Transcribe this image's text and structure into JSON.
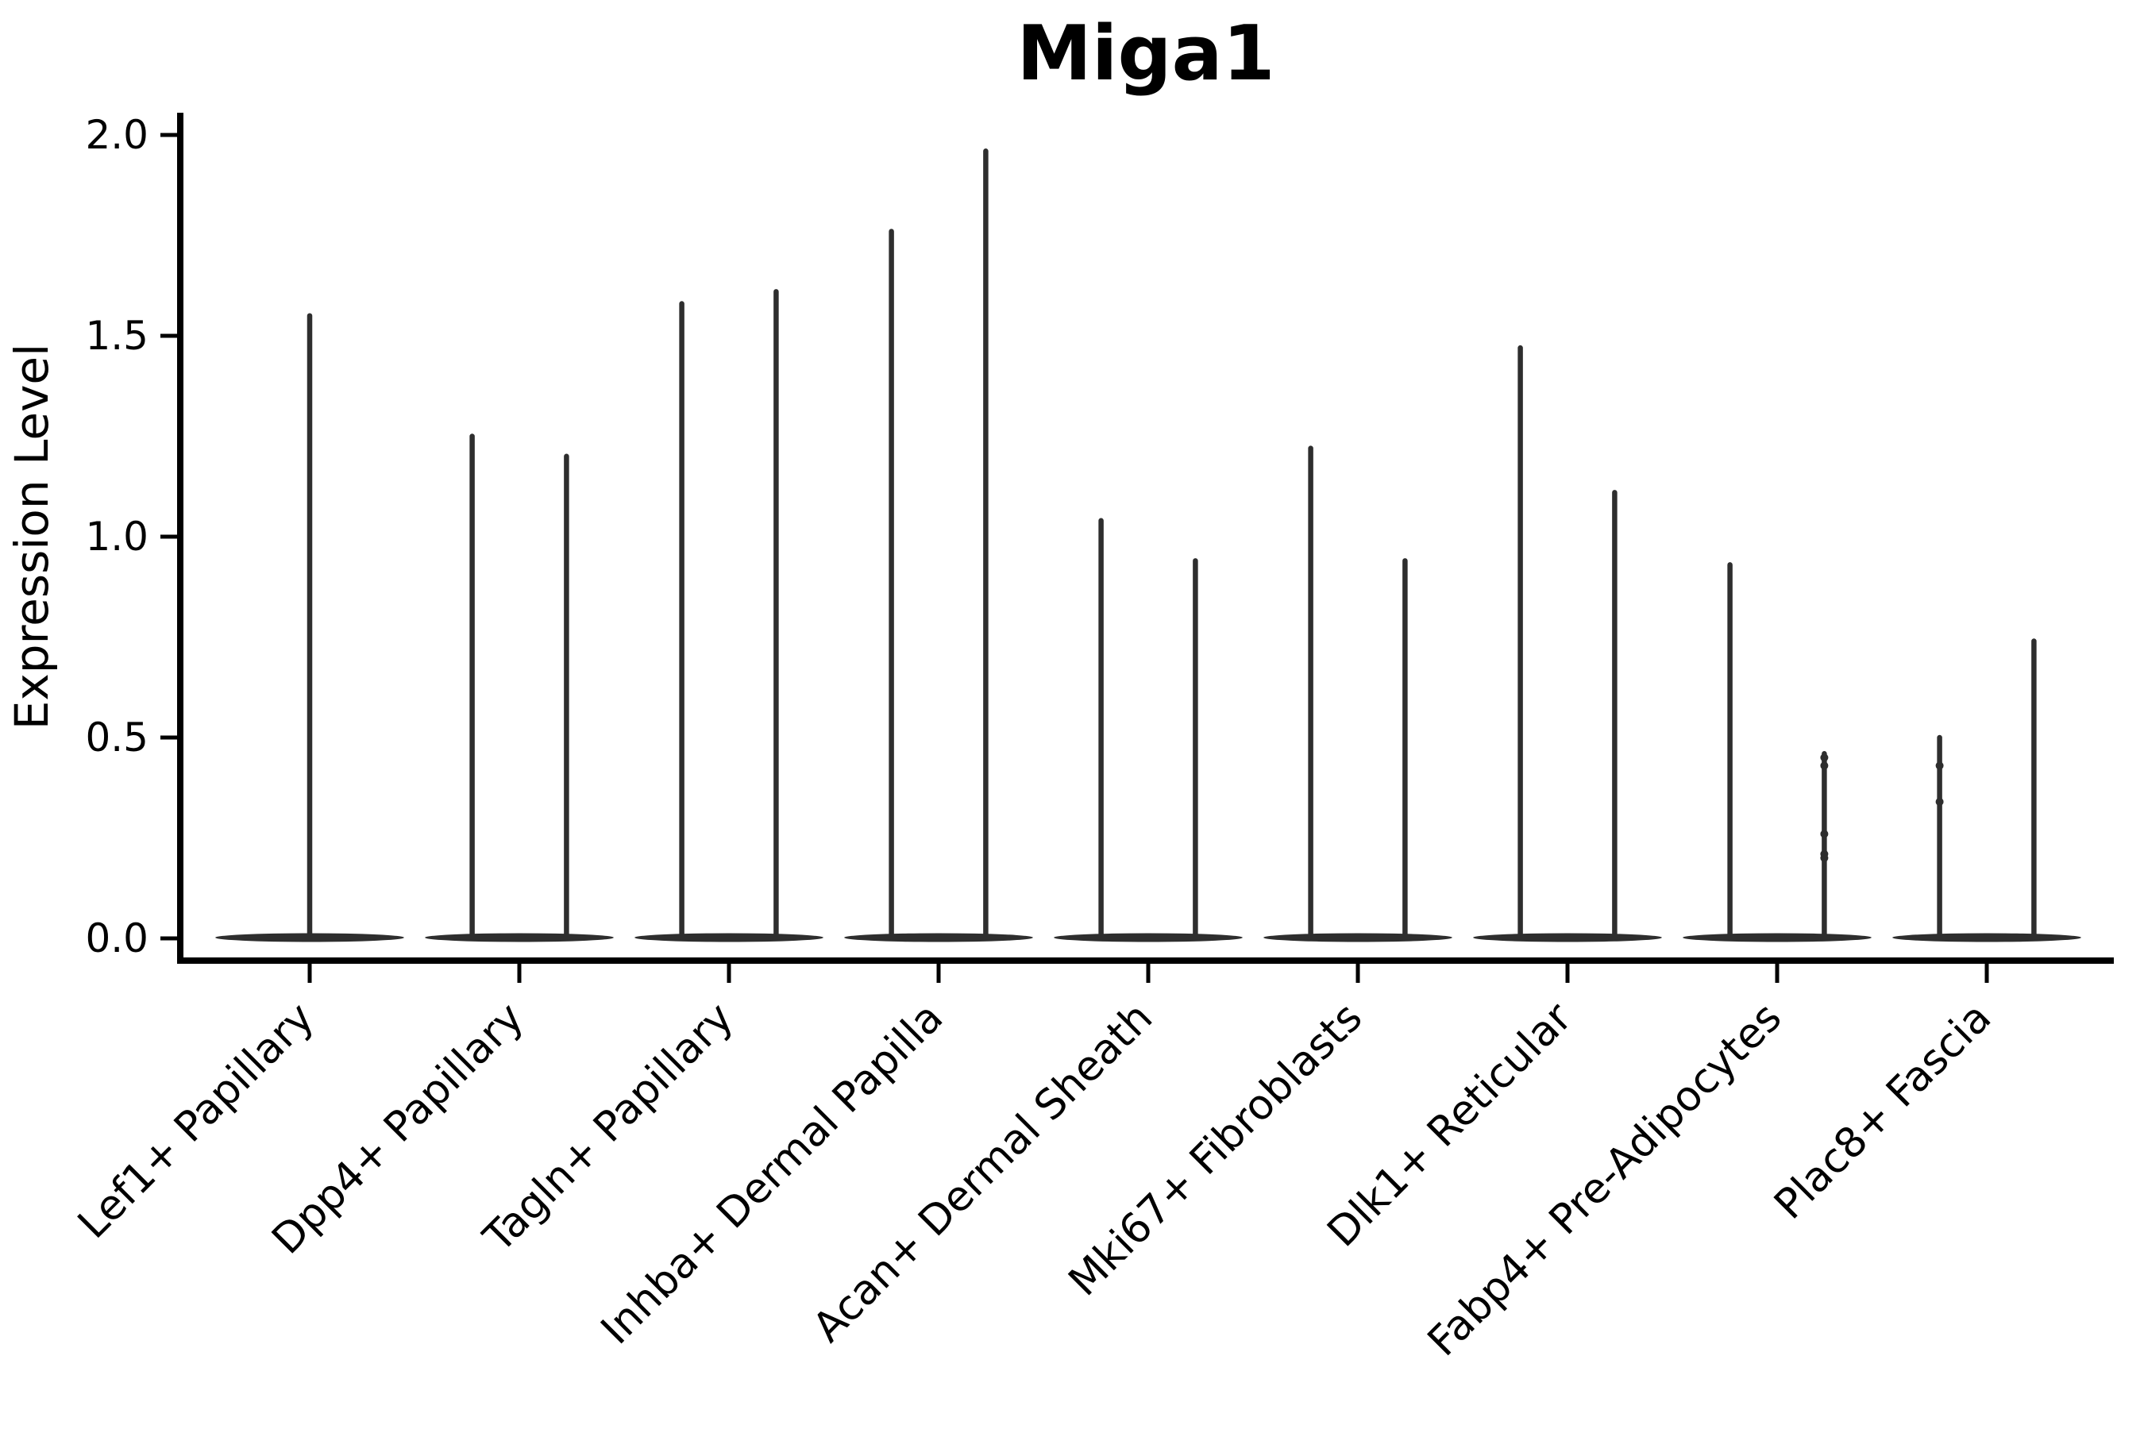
{
  "chart_data": {
    "type": "violin",
    "title": "Miga1",
    "xlabel": "",
    "ylabel": "Expression Level",
    "ylim": [
      -0.07,
      2.05
    ],
    "yticks": [
      0.0,
      0.5,
      1.0,
      1.5,
      2.0
    ],
    "ytick_labels": [
      "0.0",
      "0.5",
      "1.0",
      "1.5",
      "2.0"
    ],
    "grid": false,
    "legend": null,
    "categories": [
      "Lef1+ Papillary",
      "Dpp4+ Papillary",
      "Tagln+ Papillary",
      "Inhba+ Dermal Papilla",
      "Acan+ Dermal Sheath",
      "Mki67+ Fibroblasts",
      "Dlk1+ Reticular",
      "Fabp4+ Pre-Adipocytes",
      "Plac8+ Fascia"
    ],
    "group_width": 0.9,
    "violins": [
      {
        "category_index": 0,
        "category": "Lef1+ Papillary",
        "offset": 0.0,
        "max": 1.55,
        "points": []
      },
      {
        "category_index": 1,
        "category": "Dpp4+ Papillary",
        "offset": -0.225,
        "max": 1.25,
        "points": []
      },
      {
        "category_index": 1,
        "category": "Dpp4+ Papillary",
        "offset": 0.225,
        "max": 1.2,
        "points": []
      },
      {
        "category_index": 2,
        "category": "Tagln+ Papillary",
        "offset": -0.225,
        "max": 1.58,
        "points": []
      },
      {
        "category_index": 2,
        "category": "Tagln+ Papillary",
        "offset": 0.225,
        "max": 1.61,
        "points": []
      },
      {
        "category_index": 3,
        "category": "Inhba+ Dermal Papilla",
        "offset": -0.225,
        "max": 1.76,
        "points": []
      },
      {
        "category_index": 3,
        "category": "Inhba+ Dermal Papilla",
        "offset": 0.225,
        "max": 1.96,
        "points": []
      },
      {
        "category_index": 4,
        "category": "Acan+ Dermal Sheath",
        "offset": -0.225,
        "max": 1.04,
        "points": []
      },
      {
        "category_index": 4,
        "category": "Acan+ Dermal Sheath",
        "offset": 0.225,
        "max": 0.94,
        "points": []
      },
      {
        "category_index": 5,
        "category": "Mki67+ Fibroblasts",
        "offset": -0.225,
        "max": 1.22,
        "points": []
      },
      {
        "category_index": 5,
        "category": "Mki67+ Fibroblasts",
        "offset": 0.225,
        "max": 0.94,
        "points": []
      },
      {
        "category_index": 6,
        "category": "Dlk1+ Reticular",
        "offset": -0.225,
        "max": 1.47,
        "points": []
      },
      {
        "category_index": 6,
        "category": "Dlk1+ Reticular",
        "offset": 0.225,
        "max": 1.11,
        "points": []
      },
      {
        "category_index": 7,
        "category": "Fabp4+ Pre-Adipocytes",
        "offset": -0.225,
        "max": 0.93,
        "points": []
      },
      {
        "category_index": 7,
        "category": "Fabp4+ Pre-Adipocytes",
        "offset": 0.225,
        "max": 0.46,
        "points": [
          0.45,
          0.43,
          0.26,
          0.21,
          0.2
        ]
      },
      {
        "category_index": 8,
        "category": "Plac8+ Fascia",
        "offset": -0.225,
        "max": 0.5,
        "points": [
          0.43,
          0.34
        ]
      },
      {
        "category_index": 8,
        "category": "Plac8+ Fascia",
        "offset": 0.225,
        "max": 0.74,
        "points": []
      }
    ],
    "baseline_value": 0.0,
    "colors": {
      "violin": "#2e2e2e",
      "axis": "#000000",
      "text": "#000000",
      "background": "#ffffff"
    }
  }
}
